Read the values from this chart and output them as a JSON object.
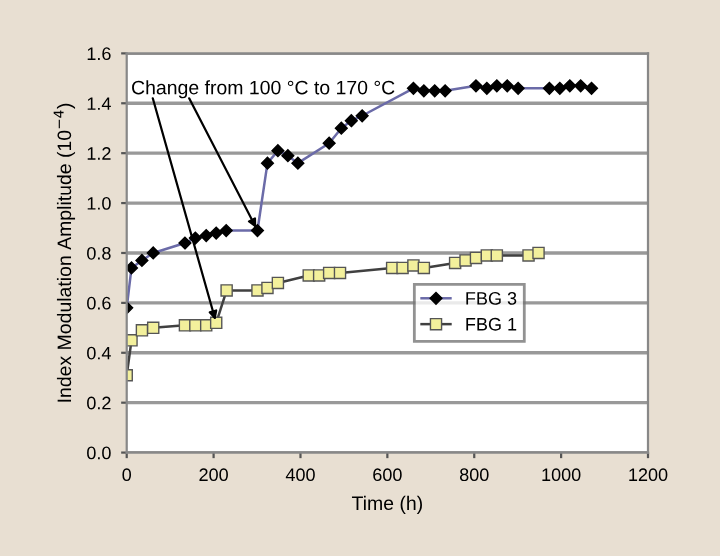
{
  "chart_data": {
    "type": "line",
    "xlabel": "Time (h)",
    "ylabel": "Index Modulation Amplitude (10$^{−4}$)",
    "xlim": [
      0,
      1200
    ],
    "xticks": [
      0,
      200,
      400,
      600,
      800,
      1000,
      1200
    ],
    "ylim": [
      0,
      1.6
    ],
    "yticks": [
      {
        "value": 0,
        "label": "0.0"
      },
      0.2,
      0.4,
      0.6,
      0.8,
      {
        "value": 1,
        "label": "1.0"
      },
      1.2,
      1.4,
      1.6
    ],
    "grid": "y",
    "legend": "right",
    "series": [
      {
        "name": "FBG 3",
        "color": "#6b6ba8",
        "marker": "diamond",
        "x": [
          0,
          11,
          35,
          61,
          134,
          158,
          183,
          206,
          229,
          301,
          324,
          348,
          371,
          394,
          466,
          494,
          517,
          542,
          660,
          684,
          709,
          733,
          804,
          829,
          852,
          876,
          901,
          973,
          997,
          1020,
          1045,
          1070
        ],
        "values": [
          0.58,
          0.74,
          0.77,
          0.8,
          0.84,
          0.86,
          0.87,
          0.88,
          0.89,
          0.89,
          1.16,
          1.21,
          1.19,
          1.16,
          1.24,
          1.3,
          1.33,
          1.35,
          1.46,
          1.45,
          1.45,
          1.45,
          1.47,
          1.46,
          1.47,
          1.47,
          1.46,
          1.46,
          1.46,
          1.47,
          1.47,
          1.46
        ]
      },
      {
        "name": "FBG 1",
        "color": "#404040",
        "marker": "square",
        "x": [
          0,
          11,
          35,
          61,
          134,
          158,
          183,
          206,
          230,
          301,
          324,
          348,
          419,
          443,
          466,
          491,
          611,
          635,
          660,
          684,
          756,
          780,
          804,
          829,
          852,
          925,
          948
        ],
        "values": [
          0.31,
          0.45,
          0.49,
          0.5,
          0.51,
          0.51,
          0.51,
          0.52,
          0.65,
          0.65,
          0.66,
          0.68,
          0.71,
          0.71,
          0.72,
          0.72,
          0.74,
          0.74,
          0.75,
          0.74,
          0.76,
          0.77,
          0.78,
          0.79,
          0.79,
          0.79,
          0.8
        ]
      }
    ],
    "annotations": [
      {
        "text": "Change from 100 °C to 170 °C",
        "x": 301,
        "y": 0.89
      }
    ]
  }
}
